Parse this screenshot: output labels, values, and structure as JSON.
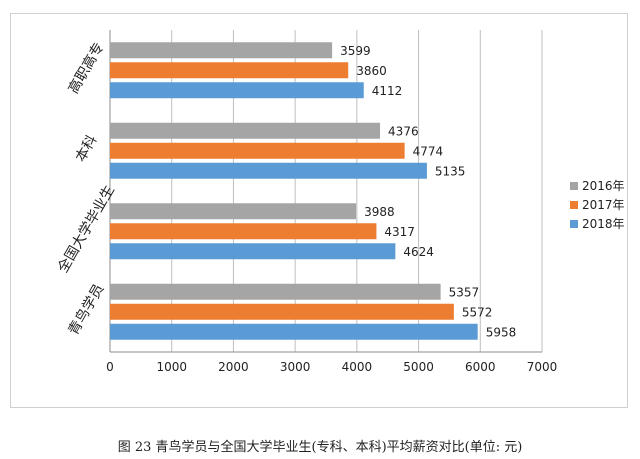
{
  "chart_data": {
    "type": "bar",
    "orientation": "horizontal",
    "categories": [
      "高职高专",
      "本科",
      "全国大学毕业生",
      "青鸟学员"
    ],
    "series": [
      {
        "name": "2016年",
        "color": "#a5a5a5",
        "values": [
          3599,
          4376,
          3988,
          5357
        ]
      },
      {
        "name": "2017年",
        "color": "#ed7d31",
        "values": [
          3860,
          4774,
          4317,
          5572
        ]
      },
      {
        "name": "2018年",
        "color": "#5b9bd5",
        "values": [
          4112,
          5135,
          4624,
          5958
        ]
      }
    ],
    "xticks": [
      "0",
      "1000",
      "2000",
      "3000",
      "4000",
      "5000",
      "6000",
      "7000"
    ],
    "xlim": [
      0,
      7000
    ],
    "grid": "vertical",
    "legend_position": "right",
    "caption": "图 23 青鸟学员与全国大学毕业生(专科、本科)平均薪资对比(单位: 元)"
  }
}
